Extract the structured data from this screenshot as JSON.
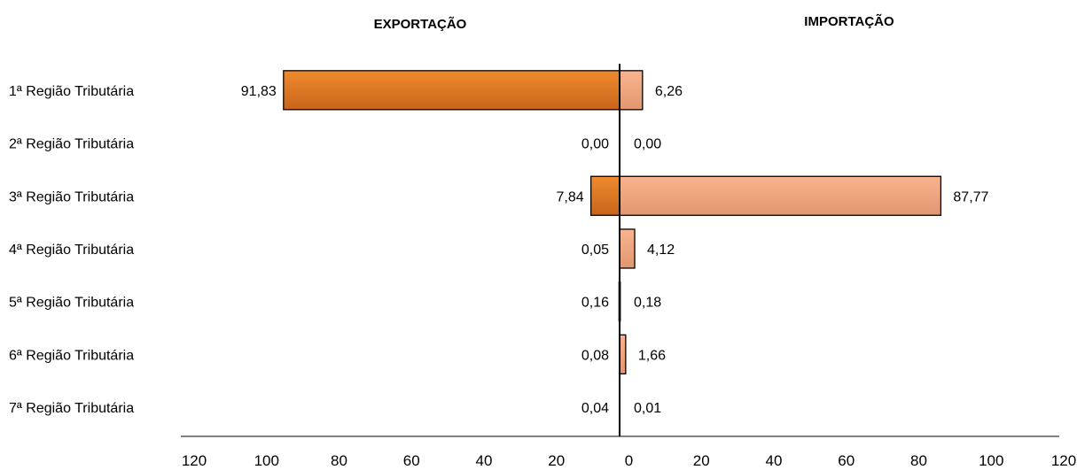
{
  "chart_data": {
    "type": "bar",
    "orientation": "horizontal-butterfly",
    "headers": {
      "left": "EXPORTAÇÃO",
      "right": "IMPORTAÇÃO"
    },
    "categories": [
      "1ª Região Tributária",
      "2ª Região Tributária",
      "3ª Região Tributária",
      "4ª Região Tributária",
      "5ª Região Tributária",
      "6ª Região Tributária",
      "7ª Região Tributária"
    ],
    "series": [
      {
        "values": [
          91.83,
          0.0,
          7.84,
          0.05,
          0.16,
          0.08,
          0.04
        ],
        "labels": [
          "91,83",
          "0,00",
          "7,84",
          "0,05",
          "0,16",
          "0,08",
          "0,04"
        ]
      },
      {
        "values": [
          6.26,
          0.0,
          87.77,
          4.12,
          0.18,
          1.66,
          0.01
        ],
        "labels": [
          "6,26",
          "0,00",
          "87,77",
          "4,12",
          "0,18",
          "1,66",
          "0,01"
        ]
      }
    ],
    "xlim": [
      -120,
      120
    ],
    "x_ticks": [
      "120",
      "100",
      "80",
      "60",
      "40",
      "20",
      "0",
      "20",
      "40",
      "60",
      "80",
      "100",
      "120"
    ],
    "colors": {
      "export": "#d9731c",
      "import": "#f0a07a"
    },
    "grid": false,
    "legend": "none"
  }
}
